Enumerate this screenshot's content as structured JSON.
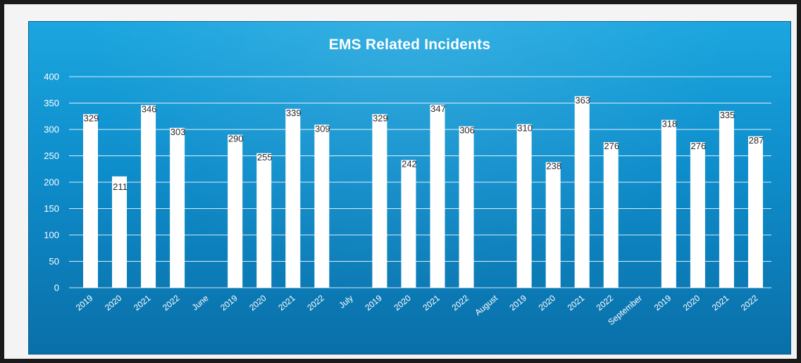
{
  "chart_data": {
    "type": "bar",
    "title": "EMS Related Incidents",
    "xlabel": "",
    "ylabel": "",
    "ylim": [
      0,
      400
    ],
    "yticks": [
      0,
      50,
      100,
      150,
      200,
      250,
      300,
      350,
      400
    ],
    "grid": true,
    "legend": "none",
    "bar_color": "#ffffff",
    "background_color": "#1590d0",
    "categories": [
      "2019",
      "2020",
      "2021",
      "2022",
      "June",
      "2019",
      "2020",
      "2021",
      "2022",
      "July",
      "2019",
      "2020",
      "2021",
      "2022",
      "August",
      "2019",
      "2020",
      "2021",
      "2022",
      "September",
      "2019",
      "2020",
      "2021",
      "2022"
    ],
    "values": [
      329,
      211,
      346,
      303,
      null,
      290,
      255,
      339,
      309,
      null,
      329,
      242,
      347,
      306,
      null,
      310,
      238,
      363,
      276,
      null,
      318,
      276,
      335,
      287
    ],
    "data_labels": [
      "329",
      "211",
      "346",
      "303",
      "",
      "290",
      "255",
      "339",
      "309",
      "",
      "329",
      "242",
      "347",
      "306",
      "",
      "310",
      "238",
      "363",
      "276",
      "",
      "318",
      "276",
      "335",
      "287"
    ]
  }
}
